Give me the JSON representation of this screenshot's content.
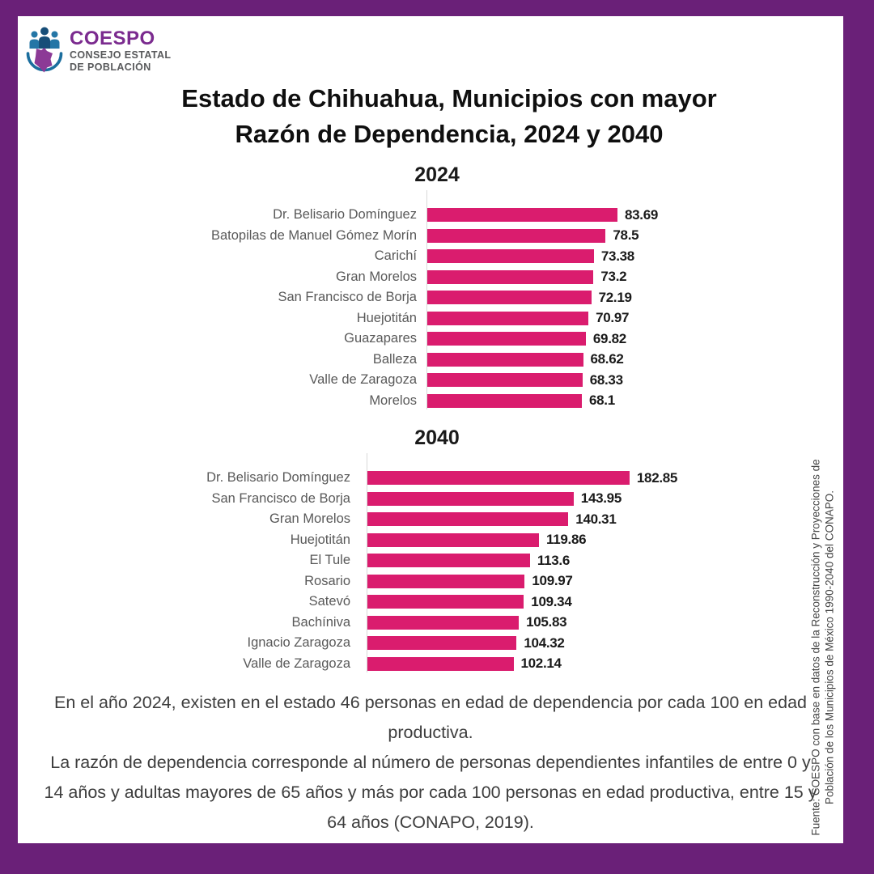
{
  "logo": {
    "acronym": "COESPO",
    "name_line1": "CONSEJO ESTATAL",
    "name_line2": "DE POBLACIÓN",
    "acronym_color": "#7B2B8F",
    "name_color": "#58595B"
  },
  "title": {
    "line1": "Estado de Chihuahua, Municipios con mayor",
    "line2": "Razón de Dependencia, 2024 y 2040"
  },
  "chart_data": [
    {
      "type": "bar",
      "orientation": "horizontal",
      "title": "2024",
      "categories": [
        "Dr. Belisario Domínguez",
        "Batopilas de Manuel Gómez Morín",
        "Carichí",
        "Gran Morelos",
        "San Francisco de Borja",
        "Huejotitán",
        "Guazapares",
        "Balleza",
        "Valle de Zaragoza",
        "Morelos"
      ],
      "values": [
        83.69,
        78.5,
        73.38,
        73.2,
        72.19,
        70.97,
        69.82,
        68.62,
        68.33,
        68.1
      ],
      "value_labels": [
        "83.69",
        "78.5",
        "73.38",
        "73.2",
        "72.19",
        "70.97",
        "69.82",
        "68.62",
        "68.33",
        "68.1"
      ],
      "bar_color": "#DA1C6E",
      "xlim": [
        0,
        90
      ],
      "grid": false,
      "legend": false
    },
    {
      "type": "bar",
      "orientation": "horizontal",
      "title": "2040",
      "categories": [
        "Dr. Belisario Domínguez",
        "San Francisco de Borja",
        "Gran Morelos",
        "Huejotitán",
        "El Tule",
        "Rosario",
        "Satevó",
        "Bachíniva",
        "Ignacio Zaragoza",
        "Valle de Zaragoza"
      ],
      "values": [
        182.85,
        143.95,
        140.31,
        119.86,
        113.6,
        109.97,
        109.34,
        105.83,
        104.32,
        102.14
      ],
      "value_labels": [
        "182.85",
        "143.95",
        "140.31",
        "119.86",
        "113.6",
        "109.97",
        "109.34",
        "105.83",
        "104.32",
        "102.14"
      ],
      "bar_color": "#DA1C6E",
      "xlim": [
        0,
        200
      ],
      "grid": false,
      "legend": false
    }
  ],
  "footnote": {
    "para1": "En el año 2024, existen en el estado 46 personas en edad de dependencia por cada 100 en edad productiva.",
    "para2": "La razón de dependencia corresponde al número de personas dependientes infantiles de entre 0 y 14 años y adultas mayores de 65 años y más por cada 100 personas en edad productiva, entre 15 y 64 años (CONAPO, 2019)."
  },
  "source": {
    "line1": "Fuente: COESPO con base en datos de la Reconstrucción y Proyecciones de",
    "line2": "Población de los Municipios de México 1990-2040 del CONAPO."
  },
  "colors": {
    "frame": "#6A2078",
    "bar": "#DA1C6E",
    "category_label_text": "#595959",
    "value_label_text": "#1A1A1A",
    "axis_line": "#D9D9D9",
    "title_text": "#0F0F0F",
    "footnote_text": "#3D3D3D"
  }
}
